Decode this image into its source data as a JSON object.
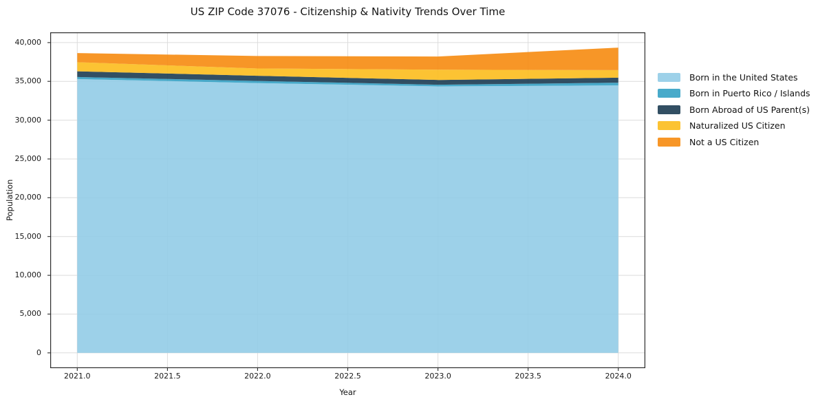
{
  "chart_data": {
    "type": "area",
    "stacked": true,
    "title": "US ZIP Code 37076 - Citizenship & Nativity Trends Over Time",
    "xlabel": "Year",
    "ylabel": "Population",
    "x": [
      2021,
      2022,
      2023,
      2024
    ],
    "series": [
      {
        "name": "Born in the United States",
        "color": "#90cbe6",
        "values": [
          35300,
          34780,
          34360,
          34480
        ]
      },
      {
        "name": "Born in Puerto Rico / Islands",
        "color": "#2f9ec3",
        "values": [
          260,
          280,
          210,
          350
        ]
      },
      {
        "name": "Born Abroad of US Parent(s)",
        "color": "#16374d",
        "values": [
          740,
          660,
          610,
          640
        ]
      },
      {
        "name": "Naturalized US Citizen",
        "color": "#fcbb17",
        "values": [
          1170,
          940,
          1320,
          980
        ]
      },
      {
        "name": "Not a US Citizen",
        "color": "#f68709",
        "values": [
          1180,
          1610,
          1710,
          2900
        ]
      }
    ],
    "stack_totals": [
      38650,
      38270,
      38210,
      39350
    ],
    "xlim": [
      2020.85,
      2024.15
    ],
    "ylim": [
      -1970,
      41320
    ],
    "x_ticks": [
      2021.0,
      2021.5,
      2022.0,
      2022.5,
      2023.0,
      2023.5,
      2024.0
    ],
    "x_tick_labels": [
      "2021.0",
      "2021.5",
      "2022.0",
      "2022.5",
      "2023.0",
      "2023.5",
      "2024.0"
    ],
    "y_ticks": [
      0,
      5000,
      10000,
      15000,
      20000,
      25000,
      30000,
      35000,
      40000
    ],
    "y_tick_labels": [
      "0",
      "5,000",
      "10,000",
      "15,000",
      "20,000",
      "25,000",
      "30,000",
      "35,000",
      "40,000"
    ],
    "grid": true,
    "legend_position": "right-outside",
    "fill_opacity": 0.88,
    "frame_color": "#2b2b2b",
    "grid_color": "#dcdcdc"
  }
}
